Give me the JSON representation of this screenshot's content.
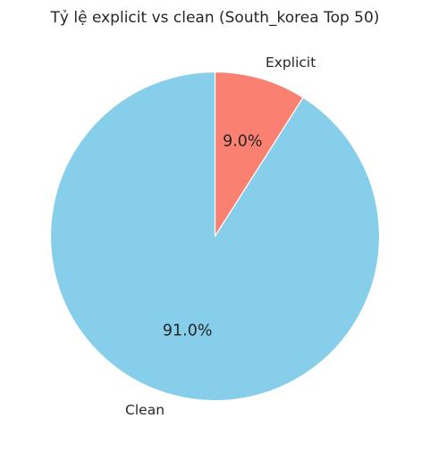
{
  "chart_data": {
    "type": "pie",
    "title": "Tỷ lệ explicit vs clean (South_korea Top 50)",
    "start_angle_deg": 90,
    "direction": "clockwise",
    "slices": [
      {
        "label": "Explicit",
        "value": 9.0,
        "pct_label": "9.0%",
        "color": "#FA8072"
      },
      {
        "label": "Clean",
        "value": 91.0,
        "pct_label": "91.0%",
        "color": "#87CEEB"
      }
    ],
    "edge_color": "#ffffff"
  }
}
